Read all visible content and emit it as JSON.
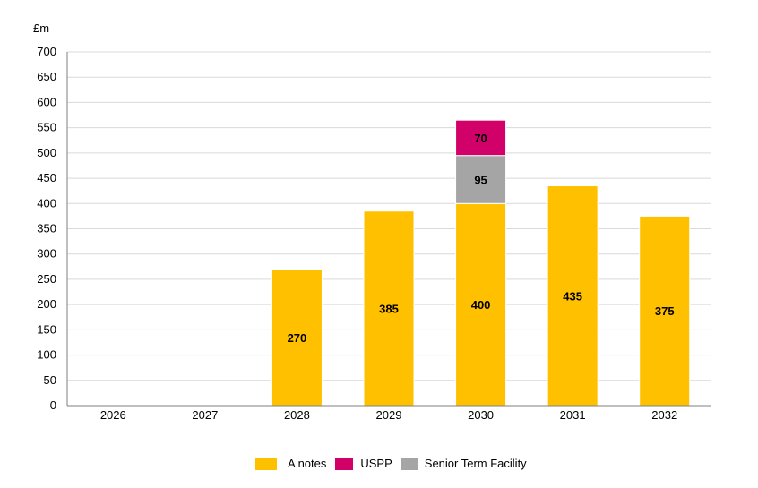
{
  "chart_data": {
    "type": "bar",
    "stacked": true,
    "ylabel": "£m",
    "ylim": [
      0,
      700
    ],
    "yticks": [
      0,
      50,
      100,
      150,
      200,
      250,
      300,
      350,
      400,
      450,
      500,
      550,
      600,
      650,
      700
    ],
    "categories": [
      "2026",
      "2027",
      "2028",
      "2029",
      "2030",
      "2031",
      "2032"
    ],
    "series": [
      {
        "name": "A notes",
        "color": "#ffc000",
        "values": [
          0,
          0,
          270,
          385,
          400,
          435,
          375
        ]
      },
      {
        "name": "Senior Term Facility",
        "color": "#a5a5a5",
        "values": [
          0,
          0,
          0,
          0,
          95,
          0,
          0
        ]
      },
      {
        "name": "USPP",
        "color": "#d20069",
        "values": [
          0,
          0,
          0,
          0,
          70,
          0,
          0
        ]
      }
    ],
    "legend_order": [
      "A notes",
      "USPP",
      "Senior Term Facility"
    ],
    "legend_position": "bottom",
    "grid": true
  }
}
